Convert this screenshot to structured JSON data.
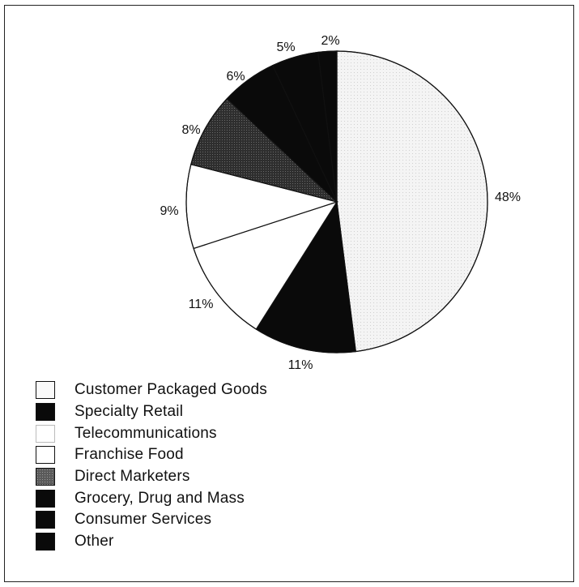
{
  "chart_data": {
    "type": "pie",
    "slices": [
      {
        "label": "Customer Packaged Goods",
        "value": 48,
        "value_label": "48%",
        "color": "#eeeeee"
      },
      {
        "label": "Specialty Retail",
        "value": 11,
        "value_label": "11%",
        "color": "#0a0a0a"
      },
      {
        "label": "Telecommunications",
        "value": 11,
        "value_label": "11%",
        "color": "#ffffff"
      },
      {
        "label": "Franchise Food",
        "value": 9,
        "value_label": "9%",
        "color": "#ffffff"
      },
      {
        "label": "Direct Marketers",
        "value": 8,
        "value_label": "8%",
        "color": "#3a3a3a"
      },
      {
        "label": "Grocery, Drug and Mass",
        "value": 6,
        "value_label": "6%",
        "color": "#0a0a0a"
      },
      {
        "label": "Consumer Services",
        "value": 5,
        "value_label": "5%",
        "color": "#0a0a0a"
      },
      {
        "label": "Other",
        "value": 2,
        "value_label": "2%",
        "color": "#0a0a0a"
      }
    ],
    "legend_position": "bottom-left"
  }
}
